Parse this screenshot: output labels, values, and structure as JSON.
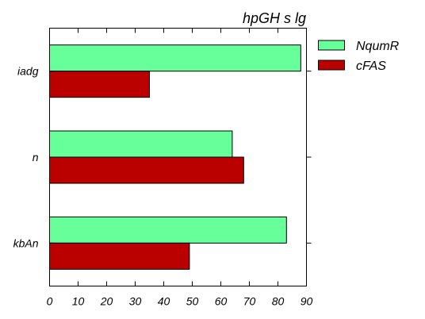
{
  "chart_data": {
    "type": "bar",
    "orientation": "horizontal",
    "title": "hpGH s lg",
    "categories": [
      "iadg",
      "n",
      "kbAn"
    ],
    "series": [
      {
        "name": "NqumR",
        "values": [
          88,
          64,
          83
        ],
        "color": "#66ff99"
      },
      {
        "name": "cFAS",
        "values": [
          35,
          68,
          49
        ],
        "color": "#bb0000"
      }
    ],
    "xlim": [
      0,
      90
    ],
    "xticks": [
      0,
      10,
      20,
      30,
      40,
      50,
      60,
      70,
      80,
      90
    ],
    "xlabel": "",
    "ylabel": "",
    "grid": false,
    "legend_position": "right"
  }
}
